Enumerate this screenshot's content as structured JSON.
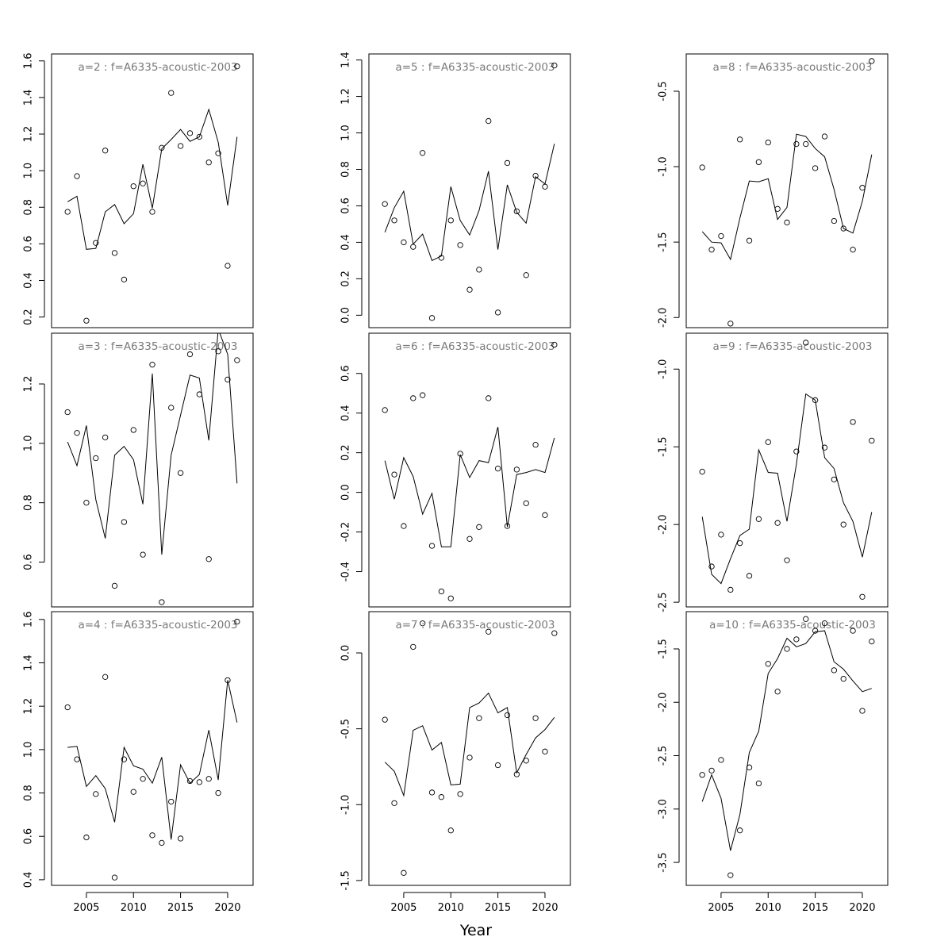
{
  "figure": {
    "xlabel": "Year"
  },
  "chart_data": [
    {
      "type": "scatter+line",
      "title": "a=2  :  f=A6335-acoustic-2003",
      "xlim": [
        2001.3,
        2022.7
      ],
      "ylim": [
        0.142,
        1.638
      ],
      "xticks": [
        2005,
        2010,
        2015,
        2020
      ],
      "yticks": [
        0.2,
        0.4,
        0.6,
        0.8,
        1.0,
        1.2,
        1.4,
        1.6
      ],
      "ytick_labels": [
        "0.2",
        "0.4",
        "0.6",
        "0.8",
        "1.0",
        "1.2",
        "1.4",
        "1.6"
      ],
      "show_xaxis": false,
      "x": [
        2003,
        2004,
        2005,
        2006,
        2007,
        2008,
        2009,
        2010,
        2011,
        2012,
        2013,
        2014,
        2015,
        2016,
        2017,
        2018,
        2019,
        2020,
        2021
      ],
      "observed": [
        0.775,
        0.97,
        0.18,
        0.605,
        1.11,
        0.55,
        0.405,
        0.915,
        0.93,
        0.775,
        1.125,
        1.425,
        1.135,
        1.205,
        1.185,
        1.045,
        1.095,
        0.48,
        1.57
      ],
      "fitted": [
        0.83,
        0.86,
        0.57,
        0.575,
        0.775,
        0.815,
        0.71,
        0.765,
        1.035,
        0.795,
        1.12,
        1.17,
        1.225,
        1.16,
        1.185,
        1.335,
        1.155,
        0.81,
        1.185
      ]
    },
    {
      "type": "scatter+line",
      "title": "a=3  :  f=A6335-acoustic-2003",
      "xlim": [
        2001.3,
        2022.7
      ],
      "ylim": [
        0.449,
        1.371
      ],
      "xticks": [
        2005,
        2010,
        2015,
        2020
      ],
      "yticks": [
        0.6,
        0.8,
        1.0,
        1.2
      ],
      "ytick_labels": [
        "0.6",
        "0.8",
        "1.0",
        "1.2"
      ],
      "show_xaxis": false,
      "x": [
        2003,
        2004,
        2005,
        2006,
        2007,
        2008,
        2009,
        2010,
        2011,
        2012,
        2013,
        2014,
        2015,
        2016,
        2017,
        2018,
        2019,
        2020,
        2021
      ],
      "observed": [
        1.105,
        1.035,
        0.8,
        0.95,
        1.02,
        0.52,
        0.735,
        1.045,
        0.625,
        1.265,
        0.465,
        1.12,
        0.9,
        1.3,
        1.165,
        0.61,
        1.31,
        1.215,
        1.28
      ],
      "fitted": [
        1.005,
        0.925,
        1.06,
        0.81,
        0.68,
        0.96,
        0.99,
        0.945,
        0.795,
        1.235,
        0.625,
        0.96,
        1.095,
        1.23,
        1.22,
        1.01,
        1.385,
        1.3,
        0.865
      ]
    },
    {
      "type": "scatter+line",
      "title": "a=4  :  f=A6335-acoustic-2003",
      "xlim": [
        2001.3,
        2022.7
      ],
      "ylim": [
        0.374,
        1.636
      ],
      "xticks": [
        2005,
        2010,
        2015,
        2020
      ],
      "yticks": [
        0.4,
        0.6,
        0.8,
        1.0,
        1.2,
        1.4,
        1.6
      ],
      "ytick_labels": [
        "0.4",
        "0.6",
        "0.8",
        "1.0",
        "1.2",
        "1.4",
        "1.6"
      ],
      "show_xaxis": true,
      "x": [
        2003,
        2004,
        2005,
        2006,
        2007,
        2008,
        2009,
        2010,
        2011,
        2012,
        2013,
        2014,
        2015,
        2016,
        2017,
        2018,
        2019,
        2020,
        2021
      ],
      "observed": [
        1.195,
        0.955,
        0.595,
        0.795,
        1.335,
        0.41,
        0.955,
        0.805,
        0.865,
        0.605,
        0.57,
        0.76,
        0.59,
        0.855,
        0.85,
        0.865,
        0.8,
        1.32,
        1.59
      ],
      "fitted": [
        1.01,
        1.015,
        0.83,
        0.88,
        0.82,
        0.665,
        1.01,
        0.925,
        0.91,
        0.845,
        0.965,
        0.585,
        0.93,
        0.845,
        0.885,
        1.09,
        0.86,
        1.32,
        1.125
      ]
    },
    {
      "type": "scatter+line",
      "title": "a=5  :  f=A6335-acoustic-2003",
      "xlim": [
        2001.3,
        2022.7
      ],
      "ylim": [
        -0.068,
        1.433
      ],
      "xticks": [
        2005,
        2010,
        2015,
        2020
      ],
      "yticks": [
        0.0,
        0.2,
        0.4,
        0.6,
        0.8,
        1.0,
        1.2,
        1.4
      ],
      "ytick_labels": [
        "0.0",
        "0.2",
        "0.4",
        "0.6",
        "0.8",
        "1.0",
        "1.2",
        "1.4"
      ],
      "show_xaxis": false,
      "x": [
        2003,
        2004,
        2005,
        2006,
        2007,
        2008,
        2009,
        2010,
        2011,
        2012,
        2013,
        2014,
        2015,
        2016,
        2017,
        2018,
        2019,
        2020,
        2021
      ],
      "observed": [
        0.61,
        0.52,
        0.4,
        0.375,
        0.89,
        -0.015,
        0.315,
        0.52,
        0.385,
        0.14,
        0.25,
        1.065,
        0.015,
        0.835,
        0.57,
        0.22,
        0.765,
        0.705,
        1.37
      ],
      "fitted": [
        0.455,
        0.59,
        0.68,
        0.39,
        0.445,
        0.3,
        0.325,
        0.705,
        0.52,
        0.44,
        0.575,
        0.79,
        0.36,
        0.715,
        0.565,
        0.505,
        0.76,
        0.72,
        0.94
      ]
    },
    {
      "type": "scatter+line",
      "title": "a=6  :  f=A6335-acoustic-2003",
      "xlim": [
        2001.3,
        2022.7
      ],
      "ylim": [
        -0.578,
        0.803
      ],
      "xticks": [
        2005,
        2010,
        2015,
        2020
      ],
      "yticks": [
        -0.4,
        -0.2,
        0.0,
        0.2,
        0.4,
        0.6
      ],
      "ytick_labels": [
        "-0.4",
        "-0.2",
        "0.0",
        "0.2",
        "0.4",
        "0.6"
      ],
      "show_xaxis": false,
      "x": [
        2003,
        2004,
        2005,
        2006,
        2007,
        2008,
        2009,
        2010,
        2011,
        2012,
        2013,
        2014,
        2015,
        2016,
        2017,
        2018,
        2019,
        2020,
        2021
      ],
      "observed": [
        0.415,
        0.09,
        -0.17,
        0.475,
        0.49,
        -0.27,
        -0.5,
        -0.535,
        0.195,
        -0.235,
        -0.175,
        0.475,
        0.12,
        -0.17,
        0.115,
        -0.055,
        0.24,
        -0.115,
        0.745
      ],
      "fitted": [
        0.16,
        -0.035,
        0.175,
        0.08,
        -0.11,
        -0.005,
        -0.275,
        -0.275,
        0.19,
        0.075,
        0.16,
        0.15,
        0.33,
        -0.175,
        0.09,
        0.1,
        0.115,
        0.1,
        0.275
      ]
    },
    {
      "type": "scatter+line",
      "title": "a=7  :  f=A6335-acoustic-2003",
      "xlim": [
        2001.3,
        2022.7
      ],
      "ylim": [
        -1.532,
        0.272
      ],
      "xticks": [
        2005,
        2010,
        2015,
        2020
      ],
      "yticks": [
        -1.5,
        -1.0,
        -0.5,
        0.0
      ],
      "ytick_labels": [
        "-1.5",
        "-1.0",
        "-0.5",
        "0.0"
      ],
      "show_xaxis": true,
      "x": [
        2003,
        2004,
        2005,
        2006,
        2007,
        2008,
        2009,
        2010,
        2011,
        2012,
        2013,
        2014,
        2015,
        2016,
        2017,
        2018,
        2019,
        2020,
        2021
      ],
      "observed": [
        -0.44,
        -0.99,
        -1.45,
        0.04,
        0.195,
        -0.92,
        -0.95,
        -1.17,
        -0.93,
        -0.69,
        -0.43,
        0.14,
        -0.74,
        -0.41,
        -0.8,
        -0.71,
        -0.43,
        -0.65,
        0.13
      ],
      "fitted": [
        -0.72,
        -0.78,
        -0.94,
        -0.51,
        -0.48,
        -0.64,
        -0.59,
        -0.87,
        -0.865,
        -0.36,
        -0.33,
        -0.265,
        -0.395,
        -0.36,
        -0.79,
        -0.67,
        -0.56,
        -0.505,
        -0.425
      ]
    },
    {
      "type": "scatter+line",
      "title": "a=8  :  f=A6335-acoustic-2003",
      "xlim": [
        2001.3,
        2022.7
      ],
      "ylim": [
        -2.067,
        -0.253
      ],
      "xticks": [
        2005,
        2010,
        2015,
        2020
      ],
      "yticks": [
        -2.0,
        -1.5,
        -1.0,
        -0.5
      ],
      "ytick_labels": [
        "-2.0",
        "-1.5",
        "-1.0",
        "-0.5"
      ],
      "show_xaxis": false,
      "x": [
        2003,
        2004,
        2005,
        2006,
        2007,
        2008,
        2009,
        2010,
        2011,
        2012,
        2013,
        2014,
        2015,
        2016,
        2017,
        2018,
        2019,
        2020,
        2021
      ],
      "observed": [
        -1.005,
        -1.55,
        -1.46,
        -2.04,
        -0.82,
        -1.49,
        -0.97,
        -0.84,
        -1.28,
        -1.37,
        -0.85,
        -0.85,
        -1.01,
        -0.8,
        -1.36,
        -1.41,
        -1.55,
        -1.14,
        -0.3
      ],
      "fitted": [
        -1.43,
        -1.5,
        -1.505,
        -1.615,
        -1.34,
        -1.095,
        -1.1,
        -1.08,
        -1.35,
        -1.27,
        -0.785,
        -0.8,
        -0.88,
        -0.935,
        -1.15,
        -1.41,
        -1.44,
        -1.23,
        -0.92
      ]
    },
    {
      "type": "scatter+line",
      "title": "a=9  :  f=A6335-acoustic-2003",
      "xlim": [
        2001.3,
        2022.7
      ],
      "ylim": [
        -2.53,
        -0.769
      ],
      "xticks": [
        2005,
        2010,
        2015,
        2020
      ],
      "yticks": [
        -2.5,
        -2.0,
        -1.5,
        -1.0
      ],
      "ytick_labels": [
        "-2.5",
        "-2.0",
        "-1.5",
        "-1.0"
      ],
      "show_xaxis": false,
      "x": [
        2003,
        2004,
        2005,
        2006,
        2007,
        2008,
        2009,
        2010,
        2011,
        2012,
        2013,
        2014,
        2015,
        2016,
        2017,
        2018,
        2019,
        2020,
        2021
      ],
      "observed": [
        -1.66,
        -2.27,
        -2.065,
        -2.42,
        -2.12,
        -2.33,
        -1.965,
        -1.47,
        -1.99,
        -2.23,
        -1.53,
        -0.83,
        -1.2,
        -1.505,
        -1.71,
        -2.0,
        -1.34,
        -2.465,
        -1.46
      ],
      "fitted": [
        -1.95,
        -2.32,
        -2.38,
        -2.22,
        -2.07,
        -2.03,
        -1.52,
        -1.665,
        -1.67,
        -1.98,
        -1.61,
        -1.16,
        -1.2,
        -1.57,
        -1.64,
        -1.86,
        -1.98,
        -2.21,
        -1.92
      ]
    },
    {
      "type": "scatter+line",
      "title": "a=10  :  f=A6335-acoustic-2003",
      "xlim": [
        2001.3,
        2022.7
      ],
      "ylim": [
        -3.715,
        -1.151
      ],
      "xticks": [
        2005,
        2010,
        2015,
        2020
      ],
      "yticks": [
        -3.5,
        -3.0,
        -2.5,
        -2.0,
        -1.5
      ],
      "ytick_labels": [
        "-3.5",
        "-3.0",
        "-2.5",
        "-2.0",
        "-1.5"
      ],
      "show_xaxis": true,
      "x": [
        2003,
        2004,
        2005,
        2006,
        2007,
        2008,
        2009,
        2010,
        2011,
        2012,
        2013,
        2014,
        2015,
        2016,
        2017,
        2018,
        2019,
        2020,
        2021
      ],
      "observed": [
        -2.68,
        -2.64,
        -2.54,
        -3.62,
        -3.2,
        -2.61,
        -2.76,
        -1.64,
        -1.9,
        -1.5,
        -1.41,
        -1.22,
        -1.33,
        -1.26,
        -1.7,
        -1.78,
        -1.33,
        -2.08,
        -1.43
      ],
      "fitted": [
        -2.93,
        -2.68,
        -2.9,
        -3.39,
        -3.05,
        -2.47,
        -2.27,
        -1.73,
        -1.59,
        -1.4,
        -1.48,
        -1.45,
        -1.34,
        -1.33,
        -1.62,
        -1.69,
        -1.8,
        -1.9,
        -1.87
      ]
    }
  ]
}
